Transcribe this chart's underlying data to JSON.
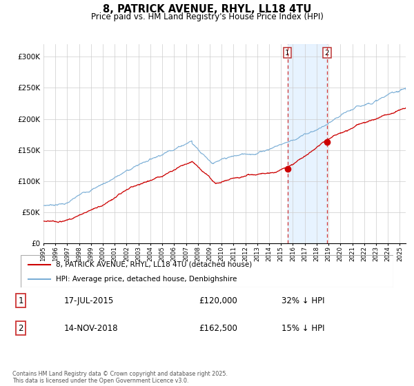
{
  "title_line1": "8, PATRICK AVENUE, RHYL, LL18 4TU",
  "title_line2": "Price paid vs. HM Land Registry's House Price Index (HPI)",
  "legend_label1": "8, PATRICK AVENUE, RHYL, LL18 4TU (detached house)",
  "legend_label2": "HPI: Average price, detached house, Denbighshire",
  "sale1_date_label": "17-JUL-2015",
  "sale1_price": 120000,
  "sale1_price_label": "£120,000",
  "sale1_hpi_label": "32% ↓ HPI",
  "sale1_year": 2015.54,
  "sale2_date_label": "14-NOV-2018",
  "sale2_price": 162500,
  "sale2_price_label": "£162,500",
  "sale2_hpi_label": "15% ↓ HPI",
  "sale2_year": 2018.87,
  "footer": "Contains HM Land Registry data © Crown copyright and database right 2025.\nThis data is licensed under the Open Government Licence v3.0.",
  "line1_color": "#cc0000",
  "line2_color": "#7aaed6",
  "shade_color": "#ddeeff",
  "vline_color": "#cc3333",
  "ylim_max": 320000,
  "ylim_min": 0,
  "xmin": 1995,
  "xmax": 2025.5
}
